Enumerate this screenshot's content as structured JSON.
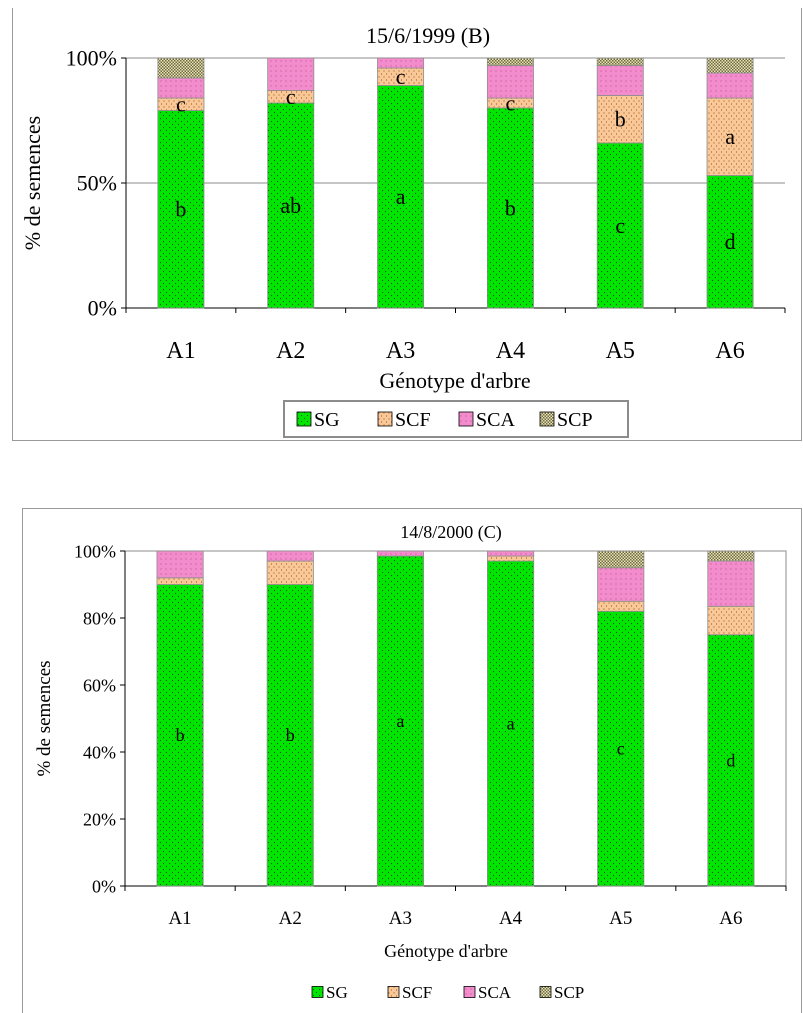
{
  "colors": {
    "SG": "#00e600",
    "SCF": "#f8c898",
    "SCA": "#f28ccc",
    "SCP": "#ece2b0"
  },
  "chart_data": [
    {
      "type": "bar",
      "stacked": true,
      "title": "15/6/1999 (B)",
      "xlabel": "Génotype d'arbre",
      "ylabel": "% de semences",
      "categories": [
        "A1",
        "A2",
        "A3",
        "A4",
        "A5",
        "A6"
      ],
      "yticks": [
        "0%",
        "50%",
        "100%"
      ],
      "ylim": [
        0,
        100
      ],
      "series": [
        {
          "name": "SG",
          "values": [
            79,
            82,
            89,
            80,
            66,
            53
          ]
        },
        {
          "name": "SCF",
          "values": [
            5,
            5,
            7,
            4,
            19,
            31
          ]
        },
        {
          "name": "SCA",
          "values": [
            8,
            13,
            4,
            13,
            12,
            10
          ]
        },
        {
          "name": "SCP",
          "values": [
            8,
            0,
            0,
            3,
            3,
            6
          ]
        }
      ],
      "annotations": {
        "SG": [
          "b",
          "ab",
          "a",
          "b",
          "c",
          "d"
        ],
        "SCF": [
          "c",
          "c",
          "c",
          "c",
          "b",
          "a"
        ]
      },
      "legend": [
        "SG",
        "SCF",
        "SCA",
        "SCP"
      ],
      "legend_position": "bottom",
      "grid": true
    },
    {
      "type": "bar",
      "stacked": true,
      "title": "14/8/2000 (C)",
      "xlabel": "Génotype d'arbre",
      "ylabel": "% de semences",
      "categories": [
        "A1",
        "A2",
        "A3",
        "A4",
        "A5",
        "A6"
      ],
      "yticks": [
        "0%",
        "20%",
        "40%",
        "60%",
        "80%",
        "100%"
      ],
      "ylim": [
        0,
        100
      ],
      "series": [
        {
          "name": "SG",
          "values": [
            90,
            90,
            98.5,
            97,
            82,
            75
          ]
        },
        {
          "name": "SCF",
          "values": [
            2,
            7,
            0,
            1.5,
            3,
            8.5
          ]
        },
        {
          "name": "SCA",
          "values": [
            8,
            3,
            1.5,
            1.5,
            10,
            13.5
          ]
        },
        {
          "name": "SCP",
          "values": [
            0,
            0,
            0,
            0,
            5,
            3
          ]
        }
      ],
      "annotations": {
        "SG": [
          "b",
          "b",
          "a",
          "a",
          "c",
          "d"
        ]
      },
      "legend": [
        "SG",
        "SCF",
        "SCA",
        "SCP"
      ],
      "legend_position": "bottom",
      "grid": false
    }
  ]
}
